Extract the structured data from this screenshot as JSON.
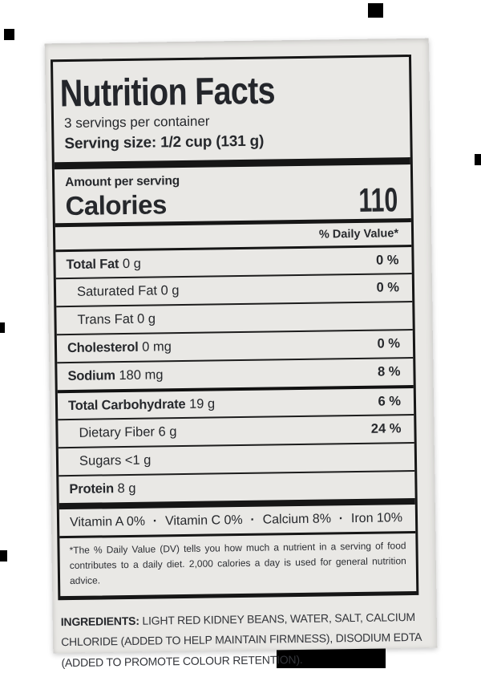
{
  "colors": {
    "page_bg": "#ffffff",
    "label_bg": "#e9e8e5",
    "text": "#26282c",
    "rule": "#161616"
  },
  "nutrition_facts": {
    "title": "Nutrition Facts",
    "servings_per_container": "3 servings per container",
    "serving_size": "Serving size: 1/2 cup (131 g)",
    "amount_per_serving": "Amount per serving",
    "calories_label": "Calories",
    "calories_value": "110",
    "daily_value_header": "% Daily Value*",
    "rows": [
      {
        "name": "Total Fat",
        "amount": "0 g",
        "dv": "0 %",
        "bold": true,
        "indent": 0
      },
      {
        "name": "Saturated Fat",
        "amount": "0 g",
        "dv": "0 %",
        "bold": false,
        "indent": 1
      },
      {
        "name": "Trans Fat",
        "amount": "0 g",
        "dv": "",
        "bold": false,
        "indent": 1
      },
      {
        "name": "Cholesterol",
        "amount": "0 mg",
        "dv": "0 %",
        "bold": true,
        "indent": 0
      },
      {
        "name": "Sodium",
        "amount": "180 mg",
        "dv": "8 %",
        "bold": true,
        "indent": 0
      },
      {
        "name": "Total Carbohydrate",
        "amount": "19 g",
        "dv": "6 %",
        "bold": true,
        "indent": 0
      },
      {
        "name": "Dietary Fiber",
        "amount": "6 g",
        "dv": "24 %",
        "bold": false,
        "indent": 1
      },
      {
        "name": "Sugars",
        "amount": "<1 g",
        "dv": "",
        "bold": false,
        "indent": 1
      },
      {
        "name": "Protein",
        "amount": "8 g",
        "dv": "",
        "bold": true,
        "indent": 0
      }
    ],
    "micro_separator": "·",
    "micronutrients": [
      {
        "name": "Vitamin A",
        "value": "0%"
      },
      {
        "name": "Vitamin C",
        "value": "0%"
      },
      {
        "name": "Calcium",
        "value": "8%"
      },
      {
        "name": "Iron",
        "value": "10%"
      }
    ],
    "footnote": "*The % Daily Value (DV) tells you how much a nutrient in a serving of food contributes to a daily diet. 2,000 calories a day is used for general nutrition advice."
  },
  "ingredients": {
    "lead": "INGREDIENTS:",
    "text": " LIGHT RED KIDNEY BEANS, WATER, SALT, CALCIUM CHLORIDE (ADDED TO HELP MAINTAIN FIRMNESS), DISODIUM EDTA (ADDED TO PROMOTE COLOUR RETENTION)."
  }
}
